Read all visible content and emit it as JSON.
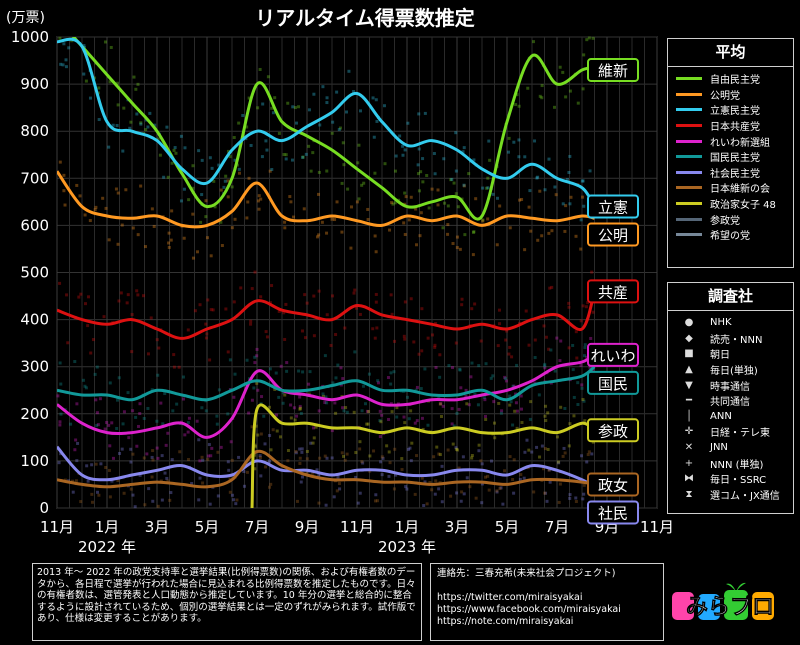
{
  "title": "リアルタイム得票数推定",
  "chart_data": {
    "type": "line",
    "title": "リアルタイム得票数推定",
    "ylabel": "(万票)",
    "ylim": [
      0,
      1000
    ],
    "yticks": [
      0,
      100,
      200,
      300,
      400,
      500,
      600,
      700,
      800,
      900,
      1000
    ],
    "xticks": [
      {
        "label": "11月",
        "m": 0
      },
      {
        "label": "1月",
        "m": 2
      },
      {
        "label": "3月",
        "m": 4
      },
      {
        "label": "5月",
        "m": 6
      },
      {
        "label": "7月",
        "m": 8
      },
      {
        "label": "9月",
        "m": 10
      },
      {
        "label": "11月",
        "m": 12
      },
      {
        "label": "1月",
        "m": 14
      },
      {
        "label": "3月",
        "m": 16
      },
      {
        "label": "5月",
        "m": 18
      },
      {
        "label": "7月",
        "m": 20
      },
      {
        "label": "9月",
        "m": 22
      },
      {
        "label": "11月",
        "m": 24
      }
    ],
    "year_labels": [
      {
        "label": "2022 年",
        "m": 2
      },
      {
        "label": "2023 年",
        "m": 14
      }
    ],
    "xlim": [
      0,
      24
    ],
    "grid": true,
    "series": [
      {
        "name": "自由民主党",
        "color": "#77dd22",
        "tag": "",
        "m": [
          0,
          1,
          2,
          3,
          4,
          5,
          6,
          7,
          8,
          9,
          10,
          11,
          12,
          13,
          14,
          15,
          16,
          17,
          18,
          19,
          20,
          21,
          21.5
        ],
        "values": [
          1040,
          980,
          920,
          860,
          800,
          710,
          640,
          700,
          900,
          820,
          790,
          760,
          720,
          680,
          640,
          650,
          660,
          620,
          820,
          960,
          900,
          930,
          935
        ]
      },
      {
        "name": "公明党",
        "color": "#ff9922",
        "tag": "公明",
        "m": [
          0,
          1,
          2,
          3,
          4,
          5,
          6,
          7,
          8,
          9,
          10,
          11,
          12,
          13,
          14,
          15,
          16,
          17,
          18,
          19,
          20,
          21,
          21.5
        ],
        "values": [
          715,
          640,
          620,
          615,
          620,
          600,
          600,
          630,
          690,
          620,
          610,
          620,
          610,
          600,
          620,
          610,
          620,
          600,
          620,
          615,
          610,
          620,
          615
        ]
      },
      {
        "name": "立憲民主党",
        "color": "#33ccee",
        "tag": "立憲",
        "m": [
          0,
          1,
          2,
          3,
          4,
          5,
          6,
          7,
          8,
          9,
          10,
          11,
          12,
          13,
          14,
          15,
          16,
          17,
          18,
          19,
          20,
          21,
          21.5
        ],
        "values": [
          990,
          980,
          820,
          800,
          780,
          720,
          690,
          760,
          800,
          780,
          810,
          840,
          880,
          820,
          770,
          780,
          760,
          720,
          700,
          730,
          700,
          680,
          640
        ]
      },
      {
        "name": "日本共産党",
        "color": "#dd1111",
        "tag": "共産",
        "m": [
          0,
          1,
          2,
          3,
          4,
          5,
          6,
          7,
          8,
          9,
          10,
          11,
          12,
          13,
          14,
          15,
          16,
          17,
          18,
          19,
          20,
          21,
          21.5
        ],
        "values": [
          420,
          400,
          390,
          400,
          380,
          360,
          380,
          400,
          440,
          420,
          410,
          400,
          430,
          410,
          400,
          390,
          380,
          390,
          380,
          400,
          410,
          380,
          460
        ]
      },
      {
        "name": "れいわ新選組",
        "color": "#dd22cc",
        "tag": "れいわ",
        "m": [
          0,
          1,
          2,
          3,
          4,
          5,
          6,
          7,
          8,
          9,
          10,
          11,
          12,
          13,
          14,
          15,
          16,
          17,
          18,
          19,
          20,
          21,
          21.5
        ],
        "values": [
          220,
          180,
          160,
          160,
          170,
          180,
          150,
          190,
          290,
          250,
          240,
          230,
          240,
          220,
          220,
          230,
          230,
          240,
          250,
          270,
          300,
          310,
          325
        ]
      },
      {
        "name": "国民民主党",
        "color": "#119999",
        "tag": "国民",
        "m": [
          0,
          1,
          2,
          3,
          4,
          5,
          6,
          7,
          8,
          9,
          10,
          11,
          12,
          13,
          14,
          15,
          16,
          17,
          18,
          19,
          20,
          21,
          21.5
        ],
        "values": [
          250,
          240,
          240,
          230,
          250,
          240,
          230,
          250,
          270,
          250,
          250,
          260,
          270,
          250,
          250,
          240,
          240,
          250,
          230,
          260,
          270,
          280,
          300
        ]
      },
      {
        "name": "社会民主党",
        "color": "#8888ee",
        "tag": "社民",
        "m": [
          0,
          1,
          2,
          3,
          4,
          5,
          6,
          7,
          8,
          9,
          10,
          11,
          12,
          13,
          14,
          15,
          16,
          17,
          18,
          19,
          20,
          21,
          21.5
        ],
        "values": [
          130,
          70,
          60,
          70,
          80,
          90,
          70,
          70,
          100,
          80,
          80,
          70,
          80,
          80,
          70,
          70,
          80,
          80,
          70,
          90,
          80,
          60,
          45
        ]
      },
      {
        "name": "日本維新の会",
        "color": "#aa6622",
        "tag": "政女",
        "m": [
          0,
          1,
          2,
          3,
          4,
          5,
          6,
          7,
          8,
          9,
          10,
          11,
          12,
          13,
          14,
          15,
          16,
          17,
          18,
          19,
          20,
          21,
          21.5
        ],
        "values": [
          60,
          50,
          45,
          50,
          55,
          50,
          45,
          60,
          120,
          90,
          70,
          60,
          60,
          55,
          55,
          50,
          55,
          55,
          50,
          60,
          60,
          55,
          50
        ]
      },
      {
        "name": "政治家女子 48",
        "color": "#cccc22",
        "tag": "参政",
        "m": [
          7.8,
          8,
          9,
          10,
          11,
          12,
          13,
          14,
          15,
          16,
          17,
          18,
          19,
          20,
          21,
          21.5
        ],
        "values": [
          0,
          210,
          180,
          180,
          170,
          170,
          160,
          170,
          160,
          170,
          160,
          160,
          170,
          160,
          180,
          165
        ]
      },
      {
        "name": "参政党",
        "color": "#556677",
        "tag": "",
        "m": [],
        "values": []
      },
      {
        "name": "希望の党",
        "color": "#778899",
        "tag": "",
        "m": [],
        "values": []
      }
    ],
    "extra_tags": [
      {
        "label": "維新",
        "color": "#77dd22",
        "value": 930
      }
    ]
  },
  "legends": {
    "average_title": "平均",
    "survey_title": "調査社",
    "surveys": [
      {
        "label": "NHK",
        "icon": "●"
      },
      {
        "label": "読売・NNN",
        "icon": "◆"
      },
      {
        "label": "朝日",
        "icon": "■"
      },
      {
        "label": "毎日(単独)",
        "icon": "▲"
      },
      {
        "label": "時事通信",
        "icon": "▼"
      },
      {
        "label": "共同通信",
        "icon": "━"
      },
      {
        "label": "ANN",
        "icon": "│"
      },
      {
        "label": "日経・テレ東",
        "icon": "✛"
      },
      {
        "label": "JNN",
        "icon": "✕"
      },
      {
        "label": "NNN (単独)",
        "icon": "+"
      },
      {
        "label": "毎日・SSRC",
        "icon": "⧓"
      },
      {
        "label": "選コム・JX通信",
        "icon": "⧗"
      }
    ]
  },
  "notes": {
    "left": "2013 年～ 2022 年の政党支持率と選挙結果(比例得票数)の関係、および有権者数のデータから、各日程で選挙が行われた場合に見込まれる比例得票数を推定したものです。日々の有権者数は、選管発表と人口動態から推定しています。10 年分の選挙と総合的に整合するように設計されているため、個別の選挙結果とは一定のずれがみられます。試作版であり、仕様は変更することがあります。",
    "contact_title": "連絡先：三春充希(未来社会プロジェクト)",
    "links": [
      "https://twitter.com/miraisyakai",
      "https://www.facebook.com/miraisyakai",
      "https://note.com/miraisyakai"
    ]
  },
  "logo": {
    "text": "みらプロ"
  }
}
